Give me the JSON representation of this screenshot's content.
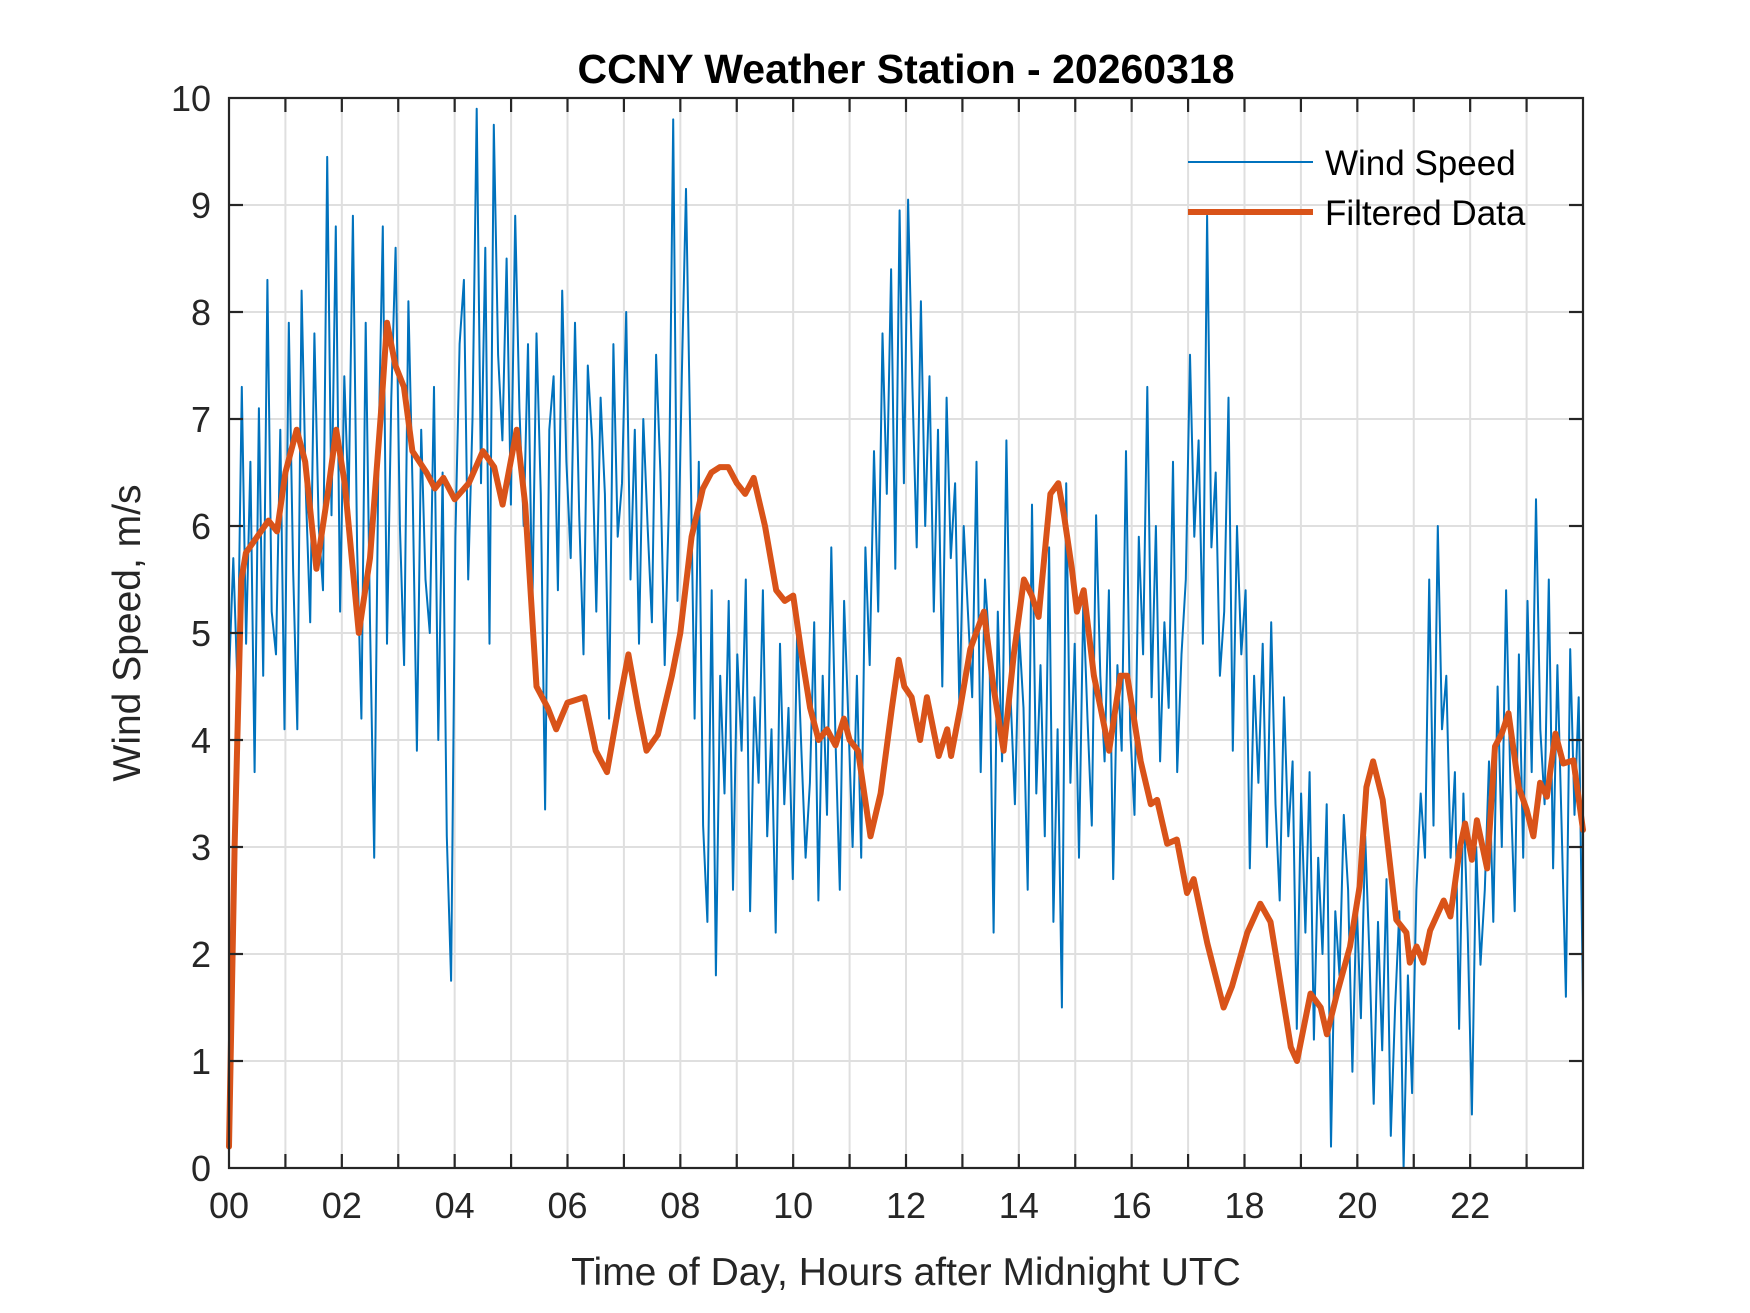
{
  "chart_data": {
    "type": "line",
    "title": "CCNY Weather Station - 20260318",
    "xlabel": "Time of Day, Hours after Midnight UTC",
    "ylabel": "Wind Speed, m/s",
    "xlim": [
      0,
      24
    ],
    "ylim": [
      0,
      10
    ],
    "grid": true,
    "legend_position": "top-right",
    "x_ticks": [
      0,
      2,
      4,
      6,
      8,
      10,
      12,
      14,
      16,
      18,
      20,
      22
    ],
    "x_tick_labels": [
      "00",
      "02",
      "04",
      "06",
      "08",
      "10",
      "12",
      "14",
      "16",
      "18",
      "20",
      "22"
    ],
    "x_minor_grid": [
      1,
      3,
      5,
      7,
      9,
      11,
      13,
      15,
      17,
      19,
      21,
      23
    ],
    "y_ticks": [
      0,
      1,
      2,
      3,
      4,
      5,
      6,
      7,
      8,
      9,
      10
    ],
    "y_tick_labels": [
      "0",
      "1",
      "2",
      "3",
      "4",
      "5",
      "6",
      "7",
      "8",
      "9",
      "10"
    ],
    "series": [
      {
        "name": "Wind Speed",
        "color": "#0072BD",
        "sample_interval_hours": 0.0833333,
        "values": [
          4.6,
          5.7,
          4.5,
          7.3,
          4.9,
          6.6,
          3.7,
          7.1,
          4.6,
          8.3,
          5.2,
          4.8,
          6.9,
          4.1,
          7.9,
          5.6,
          4.1,
          8.2,
          6.3,
          5.1,
          7.8,
          6.0,
          5.4,
          9.45,
          6.1,
          8.8,
          5.2,
          7.4,
          6.2,
          8.9,
          5.8,
          4.2,
          7.9,
          5.1,
          2.9,
          6.7,
          8.8,
          4.9,
          7.2,
          8.6,
          6.0,
          4.7,
          8.1,
          6.3,
          3.9,
          6.9,
          5.5,
          5.0,
          7.3,
          4.0,
          6.5,
          3.1,
          1.75,
          5.9,
          7.7,
          8.3,
          5.5,
          7.0,
          9.9,
          6.4,
          8.6,
          4.9,
          9.75,
          7.6,
          6.8,
          8.5,
          6.2,
          8.9,
          7.1,
          6.0,
          7.7,
          5.2,
          7.8,
          6.3,
          3.35,
          6.9,
          7.4,
          5.4,
          8.2,
          6.6,
          5.7,
          7.9,
          6.1,
          4.8,
          7.5,
          6.8,
          5.2,
          7.2,
          6.3,
          4.2,
          7.7,
          5.9,
          6.4,
          8.0,
          5.5,
          6.9,
          4.9,
          7.0,
          6.0,
          5.1,
          7.6,
          6.5,
          4.7,
          6.2,
          9.8,
          5.3,
          7.4,
          9.15,
          6.8,
          4.2,
          6.6,
          3.2,
          2.3,
          5.4,
          1.8,
          4.6,
          3.5,
          5.3,
          2.6,
          4.8,
          3.9,
          5.5,
          2.4,
          4.4,
          3.6,
          5.4,
          3.1,
          4.1,
          2.2,
          4.9,
          3.4,
          4.3,
          2.7,
          5.0,
          3.9,
          2.9,
          3.6,
          5.1,
          2.5,
          4.6,
          3.3,
          5.8,
          4.0,
          2.6,
          5.3,
          4.2,
          3.0,
          4.6,
          2.9,
          5.8,
          4.7,
          6.7,
          5.2,
          7.8,
          6.3,
          8.4,
          5.6,
          8.95,
          6.4,
          9.05,
          7.3,
          5.8,
          8.1,
          6.0,
          7.4,
          5.2,
          6.9,
          4.5,
          7.2,
          5.7,
          6.4,
          4.3,
          6.0,
          5.2,
          4.4,
          6.6,
          3.7,
          5.5,
          4.9,
          2.2,
          5.2,
          3.8,
          6.8,
          4.4,
          3.4,
          5.0,
          4.3,
          2.6,
          6.2,
          3.5,
          4.7,
          3.1,
          5.8,
          2.3,
          4.1,
          1.5,
          6.4,
          3.6,
          4.9,
          2.9,
          5.3,
          4.2,
          3.2,
          6.1,
          4.6,
          3.8,
          5.4,
          2.7,
          4.7,
          3.9,
          6.7,
          4.1,
          3.3,
          5.9,
          4.8,
          7.3,
          4.4,
          6.0,
          3.8,
          5.1,
          4.3,
          6.6,
          3.7,
          4.8,
          5.5,
          7.6,
          5.9,
          6.8,
          4.9,
          8.9,
          5.8,
          6.5,
          4.6,
          5.2,
          7.2,
          3.9,
          6.0,
          4.8,
          5.4,
          2.8,
          4.6,
          3.6,
          4.9,
          3.0,
          5.1,
          3.4,
          2.5,
          4.4,
          3.1,
          3.8,
          1.3,
          3.5,
          2.2,
          3.7,
          1.2,
          2.9,
          2.0,
          3.4,
          0.2,
          2.4,
          1.8,
          3.3,
          2.6,
          0.9,
          2.5,
          1.4,
          3.1,
          2.0,
          0.6,
          2.3,
          1.1,
          2.7,
          0.3,
          1.5,
          2.4,
          0.0,
          1.8,
          0.7,
          2.6,
          3.5,
          2.9,
          5.5,
          3.2,
          6.0,
          4.1,
          4.6,
          2.9,
          3.7,
          1.3,
          3.5,
          2.2,
          0.5,
          3.0,
          1.9,
          2.6,
          3.8,
          2.3,
          4.5,
          3.0,
          5.4,
          3.6,
          2.4,
          4.8,
          2.9,
          5.3,
          3.7,
          6.25,
          4.1,
          3.4,
          5.5,
          2.8,
          4.7,
          3.2,
          1.6,
          4.85,
          3.3,
          4.4,
          1.55
        ]
      },
      {
        "name": "Filtered Data",
        "color": "#D95319",
        "points": [
          [
            0,
            0.2
          ],
          [
            0.1,
            3.0
          ],
          [
            0.22,
            5.5
          ],
          [
            0.3,
            5.75
          ],
          [
            0.5,
            5.9
          ],
          [
            0.7,
            6.05
          ],
          [
            0.85,
            5.95
          ],
          [
            1.0,
            6.5
          ],
          [
            1.2,
            6.9
          ],
          [
            1.35,
            6.6
          ],
          [
            1.55,
            5.6
          ],
          [
            1.75,
            6.3
          ],
          [
            1.9,
            6.9
          ],
          [
            2.05,
            6.4
          ],
          [
            2.3,
            5.0
          ],
          [
            2.5,
            5.7
          ],
          [
            2.7,
            7.1
          ],
          [
            2.8,
            7.9
          ],
          [
            2.95,
            7.5
          ],
          [
            3.1,
            7.3
          ],
          [
            3.25,
            6.7
          ],
          [
            3.5,
            6.5
          ],
          [
            3.65,
            6.35
          ],
          [
            3.8,
            6.45
          ],
          [
            4.0,
            6.25
          ],
          [
            4.25,
            6.4
          ],
          [
            4.5,
            6.7
          ],
          [
            4.7,
            6.55
          ],
          [
            4.85,
            6.2
          ],
          [
            5.1,
            6.9
          ],
          [
            5.25,
            6.2
          ],
          [
            5.45,
            4.5
          ],
          [
            5.65,
            4.3
          ],
          [
            5.8,
            4.1
          ],
          [
            6.0,
            4.35
          ],
          [
            6.3,
            4.4
          ],
          [
            6.5,
            3.9
          ],
          [
            6.7,
            3.7
          ],
          [
            6.9,
            4.3
          ],
          [
            7.08,
            4.8
          ],
          [
            7.25,
            4.3
          ],
          [
            7.4,
            3.9
          ],
          [
            7.6,
            4.05
          ],
          [
            7.85,
            4.6
          ],
          [
            8.0,
            5.0
          ],
          [
            8.2,
            5.9
          ],
          [
            8.4,
            6.35
          ],
          [
            8.55,
            6.5
          ],
          [
            8.7,
            6.55
          ],
          [
            8.85,
            6.55
          ],
          [
            9.0,
            6.4
          ],
          [
            9.15,
            6.3
          ],
          [
            9.3,
            6.45
          ],
          [
            9.5,
            6.0
          ],
          [
            9.7,
            5.4
          ],
          [
            9.85,
            5.3
          ],
          [
            10.0,
            5.35
          ],
          [
            10.15,
            4.8
          ],
          [
            10.3,
            4.3
          ],
          [
            10.45,
            4.0
          ],
          [
            10.6,
            4.1
          ],
          [
            10.75,
            3.95
          ],
          [
            10.9,
            4.2
          ],
          [
            11.0,
            4.0
          ],
          [
            11.15,
            3.9
          ],
          [
            11.37,
            3.1
          ],
          [
            11.55,
            3.5
          ],
          [
            11.75,
            4.3
          ],
          [
            11.87,
            4.75
          ],
          [
            11.97,
            4.5
          ],
          [
            12.1,
            4.4
          ],
          [
            12.25,
            4.0
          ],
          [
            12.37,
            4.4
          ],
          [
            12.58,
            3.85
          ],
          [
            12.73,
            4.1
          ],
          [
            12.8,
            3.85
          ],
          [
            12.96,
            4.3
          ],
          [
            13.14,
            4.85
          ],
          [
            13.38,
            5.2
          ],
          [
            13.55,
            4.5
          ],
          [
            13.73,
            3.9
          ],
          [
            13.91,
            4.8
          ],
          [
            14.09,
            5.5
          ],
          [
            14.23,
            5.35
          ],
          [
            14.35,
            5.15
          ],
          [
            14.56,
            6.3
          ],
          [
            14.7,
            6.4
          ],
          [
            14.8,
            6.1
          ],
          [
            14.94,
            5.6
          ],
          [
            15.03,
            5.2
          ],
          [
            15.15,
            5.4
          ],
          [
            15.33,
            4.6
          ],
          [
            15.45,
            4.3
          ],
          [
            15.6,
            3.9
          ],
          [
            15.8,
            4.6
          ],
          [
            15.92,
            4.6
          ],
          [
            16.16,
            3.8
          ],
          [
            16.34,
            3.4
          ],
          [
            16.45,
            3.44
          ],
          [
            16.63,
            3.03
          ],
          [
            16.8,
            3.07
          ],
          [
            16.98,
            2.57
          ],
          [
            17.1,
            2.7
          ],
          [
            17.34,
            2.1
          ],
          [
            17.63,
            1.5
          ],
          [
            17.78,
            1.7
          ],
          [
            18.05,
            2.2
          ],
          [
            18.28,
            2.47
          ],
          [
            18.46,
            2.3
          ],
          [
            18.82,
            1.13
          ],
          [
            18.93,
            1.0
          ],
          [
            19.17,
            1.63
          ],
          [
            19.35,
            1.5
          ],
          [
            19.46,
            1.25
          ],
          [
            19.64,
            1.63
          ],
          [
            19.87,
            2.07
          ],
          [
            20.04,
            2.63
          ],
          [
            20.16,
            3.56
          ],
          [
            20.28,
            3.8
          ],
          [
            20.45,
            3.44
          ],
          [
            20.69,
            2.32
          ],
          [
            20.87,
            2.2
          ],
          [
            20.93,
            1.92
          ],
          [
            21.05,
            2.07
          ],
          [
            21.17,
            1.92
          ],
          [
            21.29,
            2.22
          ],
          [
            21.53,
            2.5
          ],
          [
            21.65,
            2.35
          ],
          [
            21.82,
            3.0
          ],
          [
            21.91,
            3.22
          ],
          [
            22.03,
            2.88
          ],
          [
            22.12,
            3.25
          ],
          [
            22.3,
            2.8
          ],
          [
            22.44,
            3.94
          ],
          [
            22.56,
            4.06
          ],
          [
            22.68,
            4.25
          ],
          [
            22.86,
            3.56
          ],
          [
            23.0,
            3.35
          ],
          [
            23.12,
            3.1
          ],
          [
            23.24,
            3.6
          ],
          [
            23.36,
            3.47
          ],
          [
            23.51,
            4.06
          ],
          [
            23.65,
            3.78
          ],
          [
            23.83,
            3.81
          ],
          [
            24.0,
            3.16
          ]
        ]
      }
    ],
    "legend": [
      "Wind Speed",
      "Filtered Data"
    ]
  }
}
